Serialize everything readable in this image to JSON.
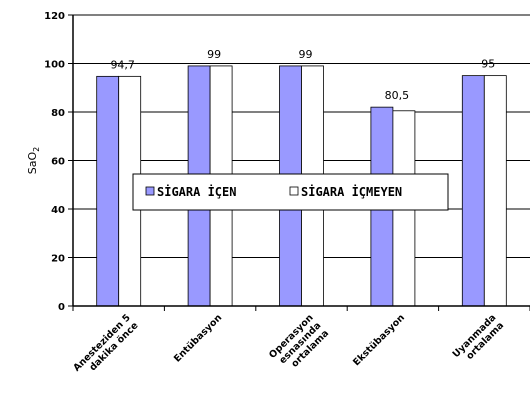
{
  "chart_data": {
    "type": "bar",
    "ylabel": "SaO2",
    "ylim": [
      0,
      120
    ],
    "yticks": [
      0,
      20,
      40,
      60,
      80,
      100,
      120
    ],
    "grid": true,
    "legend_position": "center",
    "categories": [
      [
        "Anesteziden 5",
        "dakika önce"
      ],
      [
        "Entübasyon"
      ],
      [
        "Operasyon",
        "esnasında",
        "ortalama"
      ],
      [
        "Ekstübasyon"
      ],
      [
        "Uyanmada",
        "ortalama"
      ]
    ],
    "series": [
      {
        "name": "SİGARA İÇEN",
        "color": "#9999ff",
        "values": [
          94.7,
          99,
          99,
          82,
          95
        ]
      },
      {
        "name": "SİGARA İÇMEYEN",
        "color": "#ffffff",
        "values": [
          94.7,
          99,
          99,
          80.5,
          95
        ]
      }
    ],
    "data_labels": [
      "94,7",
      "99",
      "99",
      "80,5",
      "95"
    ]
  }
}
